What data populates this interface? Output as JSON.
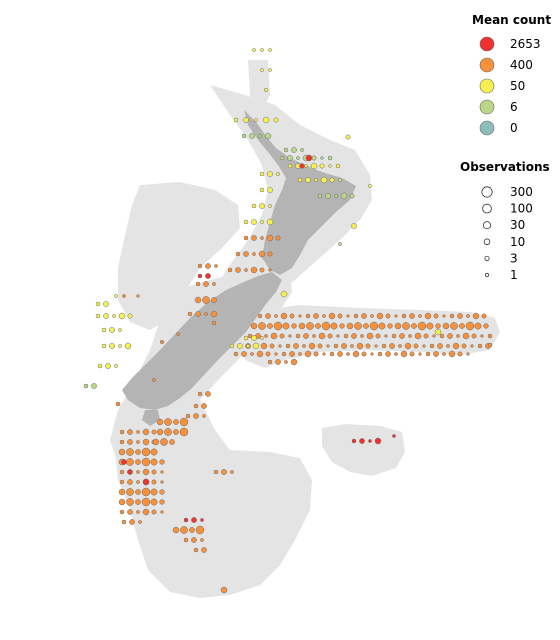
{
  "map": {
    "land_color": "#b4b4b4",
    "shelf_color": "#e4e4e4",
    "point_stroke": "#6b6b6b"
  },
  "legend": {
    "mean_count": {
      "title": "Mean count",
      "items": [
        {
          "label": "2653",
          "color": "#f03232"
        },
        {
          "label": "400",
          "color": "#f5913c"
        },
        {
          "label": "50",
          "color": "#f5f050"
        },
        {
          "label": "6",
          "color": "#b9d787"
        },
        {
          "label": "0",
          "color": "#8cbeb9"
        }
      ]
    },
    "observations": {
      "title": "Observations",
      "items": [
        {
          "label": "300",
          "value": 300
        },
        {
          "label": "100",
          "value": 100
        },
        {
          "label": "30",
          "value": 30
        },
        {
          "label": "10",
          "value": 10
        },
        {
          "label": "3",
          "value": 3
        },
        {
          "label": "1",
          "value": 1
        }
      ]
    }
  }
}
